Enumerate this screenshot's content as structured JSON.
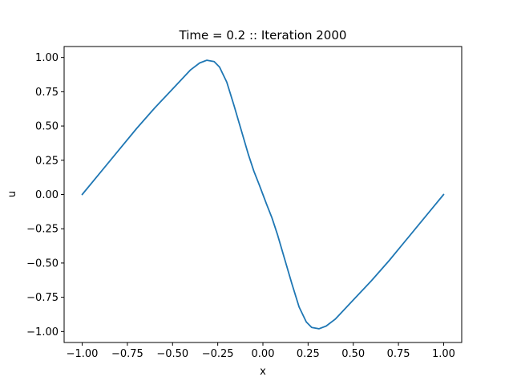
{
  "chart_data": {
    "type": "line",
    "title": "Time = 0.2 :: Iteration 2000",
    "xlabel": "x",
    "ylabel": "u",
    "xlim": [
      -1.1,
      1.1
    ],
    "ylim": [
      -1.08,
      1.08
    ],
    "grid": false,
    "legend": "none",
    "x_ticks": [
      -1.0,
      -0.75,
      -0.5,
      -0.25,
      0.0,
      0.25,
      0.5,
      0.75,
      1.0
    ],
    "x_tick_labels": [
      "−1.00",
      "−0.75",
      "−0.50",
      "−0.25",
      "0.00",
      "0.25",
      "0.50",
      "0.75",
      "1.00"
    ],
    "y_ticks": [
      1.0,
      0.75,
      0.5,
      0.25,
      0.0,
      -0.25,
      -0.5,
      -0.75,
      -1.0
    ],
    "y_tick_labels": [
      "1.00",
      "0.75",
      "0.50",
      "0.25",
      "0.00",
      "−0.25",
      "−0.50",
      "−0.75",
      "−1.00"
    ],
    "series": [
      {
        "color": "#1f77b4",
        "x": [
          -1.0,
          -0.9,
          -0.8,
          -0.7,
          -0.6,
          -0.5,
          -0.45,
          -0.4,
          -0.35,
          -0.31,
          -0.27,
          -0.24,
          -0.2,
          -0.16,
          -0.12,
          -0.08,
          -0.05,
          -0.02,
          0.0,
          0.02,
          0.05,
          0.08,
          0.12,
          0.16,
          0.2,
          0.24,
          0.27,
          0.31,
          0.35,
          0.4,
          0.45,
          0.5,
          0.6,
          0.7,
          0.8,
          0.9,
          1.0
        ],
        "y": [
          0.0,
          0.16,
          0.32,
          0.48,
          0.63,
          0.77,
          0.84,
          0.91,
          0.96,
          0.98,
          0.97,
          0.93,
          0.82,
          0.65,
          0.47,
          0.29,
          0.17,
          0.07,
          0.0,
          -0.07,
          -0.17,
          -0.29,
          -0.47,
          -0.65,
          -0.82,
          -0.93,
          -0.97,
          -0.98,
          -0.96,
          -0.91,
          -0.84,
          -0.77,
          -0.63,
          -0.48,
          -0.32,
          -0.16,
          0.0
        ]
      }
    ]
  }
}
